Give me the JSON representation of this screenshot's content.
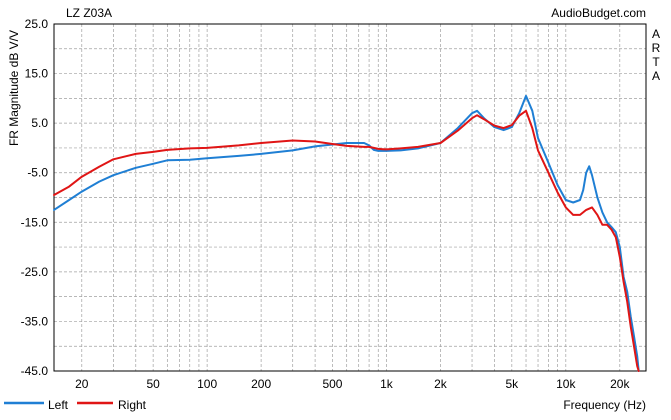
{
  "chart_data": {
    "type": "line",
    "title": "LZ Z03A",
    "source": "AudioBudget.com",
    "side_label": [
      "A",
      "R",
      "T",
      "A"
    ],
    "xlabel": "Frequency (Hz)",
    "ylabel": "FR Magnitude dB V/V",
    "xscale": "log",
    "xlim": [
      14,
      28000
    ],
    "ylim": [
      -45,
      25
    ],
    "grid": true,
    "x_ticks": [
      {
        "value": 20,
        "label": "20"
      },
      {
        "value": 50,
        "label": "50"
      },
      {
        "value": 100,
        "label": "100"
      },
      {
        "value": 200,
        "label": "200"
      },
      {
        "value": 500,
        "label": "500"
      },
      {
        "value": 1000,
        "label": "1k"
      },
      {
        "value": 2000,
        "label": "2k"
      },
      {
        "value": 5000,
        "label": "5k"
      },
      {
        "value": 10000,
        "label": "10k"
      },
      {
        "value": 20000,
        "label": "20k"
      }
    ],
    "y_ticks": [
      {
        "value": 25,
        "label": "25.0"
      },
      {
        "value": 15,
        "label": "15.0"
      },
      {
        "value": 5,
        "label": "5.0"
      },
      {
        "value": -5,
        "label": "-5.0"
      },
      {
        "value": -15,
        "label": "-15.0"
      },
      {
        "value": -25,
        "label": "-25.0"
      },
      {
        "value": -35,
        "label": "-35.0"
      },
      {
        "value": -45,
        "label": "-45.0"
      }
    ],
    "legend_position": "bottom-left",
    "series": [
      {
        "name": "Left",
        "color": "#1f7fd4",
        "points": [
          [
            14,
            -12.5
          ],
          [
            17,
            -10.5
          ],
          [
            20,
            -8.8
          ],
          [
            25,
            -6.8
          ],
          [
            30,
            -5.5
          ],
          [
            40,
            -4.0
          ],
          [
            50,
            -3.2
          ],
          [
            60,
            -2.5
          ],
          [
            80,
            -2.4
          ],
          [
            100,
            -2.1
          ],
          [
            150,
            -1.6
          ],
          [
            200,
            -1.2
          ],
          [
            300,
            -0.5
          ],
          [
            400,
            0.3
          ],
          [
            500,
            0.7
          ],
          [
            600,
            1.0
          ],
          [
            750,
            1.0
          ],
          [
            800,
            0.5
          ],
          [
            850,
            -0.4
          ],
          [
            900,
            -0.6
          ],
          [
            1000,
            -0.6
          ],
          [
            1200,
            -0.5
          ],
          [
            1500,
            -0.1
          ],
          [
            2000,
            1.0
          ],
          [
            2500,
            4.0
          ],
          [
            3000,
            7.0
          ],
          [
            3200,
            7.5
          ],
          [
            3500,
            6.0
          ],
          [
            4000,
            4.2
          ],
          [
            4500,
            3.6
          ],
          [
            5000,
            4.2
          ],
          [
            5500,
            7.0
          ],
          [
            6000,
            10.5
          ],
          [
            6500,
            7.5
          ],
          [
            7000,
            2.0
          ],
          [
            8000,
            -3.0
          ],
          [
            9000,
            -7.5
          ],
          [
            10000,
            -10.5
          ],
          [
            11000,
            -11.0
          ],
          [
            12000,
            -10.5
          ],
          [
            12500,
            -8.5
          ],
          [
            13000,
            -5.0
          ],
          [
            13500,
            -3.7
          ],
          [
            14000,
            -5.5
          ],
          [
            15000,
            -10.0
          ],
          [
            16000,
            -13.0
          ],
          [
            17000,
            -15.0
          ],
          [
            18000,
            -16.0
          ],
          [
            19000,
            -17.0
          ],
          [
            20000,
            -20.0
          ],
          [
            21000,
            -26.0
          ],
          [
            22000,
            -29.0
          ],
          [
            23000,
            -34.0
          ],
          [
            24000,
            -38.0
          ],
          [
            25000,
            -42.0
          ],
          [
            25500,
            -45.0
          ]
        ]
      },
      {
        "name": "Right",
        "color": "#e01515",
        "points": [
          [
            14,
            -9.5
          ],
          [
            17,
            -7.8
          ],
          [
            20,
            -5.8
          ],
          [
            25,
            -3.8
          ],
          [
            30,
            -2.3
          ],
          [
            40,
            -1.2
          ],
          [
            50,
            -0.8
          ],
          [
            60,
            -0.4
          ],
          [
            80,
            -0.1
          ],
          [
            100,
            0.0
          ],
          [
            150,
            0.5
          ],
          [
            200,
            1.0
          ],
          [
            300,
            1.5
          ],
          [
            400,
            1.3
          ],
          [
            500,
            0.8
          ],
          [
            600,
            0.4
          ],
          [
            750,
            0.2
          ],
          [
            800,
            0.2
          ],
          [
            850,
            0.0
          ],
          [
            900,
            -0.2
          ],
          [
            1000,
            -0.3
          ],
          [
            1200,
            -0.1
          ],
          [
            1500,
            0.2
          ],
          [
            2000,
            1.0
          ],
          [
            2500,
            3.5
          ],
          [
            3000,
            6.0
          ],
          [
            3200,
            6.6
          ],
          [
            3500,
            5.8
          ],
          [
            4000,
            4.5
          ],
          [
            4500,
            4.0
          ],
          [
            5000,
            4.6
          ],
          [
            5500,
            6.5
          ],
          [
            6000,
            7.5
          ],
          [
            6500,
            4.0
          ],
          [
            7000,
            -0.5
          ],
          [
            8000,
            -5.0
          ],
          [
            9000,
            -9.0
          ],
          [
            10000,
            -12.0
          ],
          [
            11000,
            -13.5
          ],
          [
            12000,
            -13.5
          ],
          [
            13000,
            -12.5
          ],
          [
            14000,
            -12.0
          ],
          [
            15000,
            -13.5
          ],
          [
            16000,
            -15.5
          ],
          [
            17000,
            -15.5
          ],
          [
            18000,
            -16.5
          ],
          [
            19000,
            -18.0
          ],
          [
            20000,
            -22.0
          ],
          [
            21000,
            -27.0
          ],
          [
            22000,
            -31.0
          ],
          [
            23000,
            -36.0
          ],
          [
            24000,
            -40.0
          ],
          [
            25000,
            -44.0
          ],
          [
            25500,
            -45.0
          ]
        ]
      }
    ]
  }
}
